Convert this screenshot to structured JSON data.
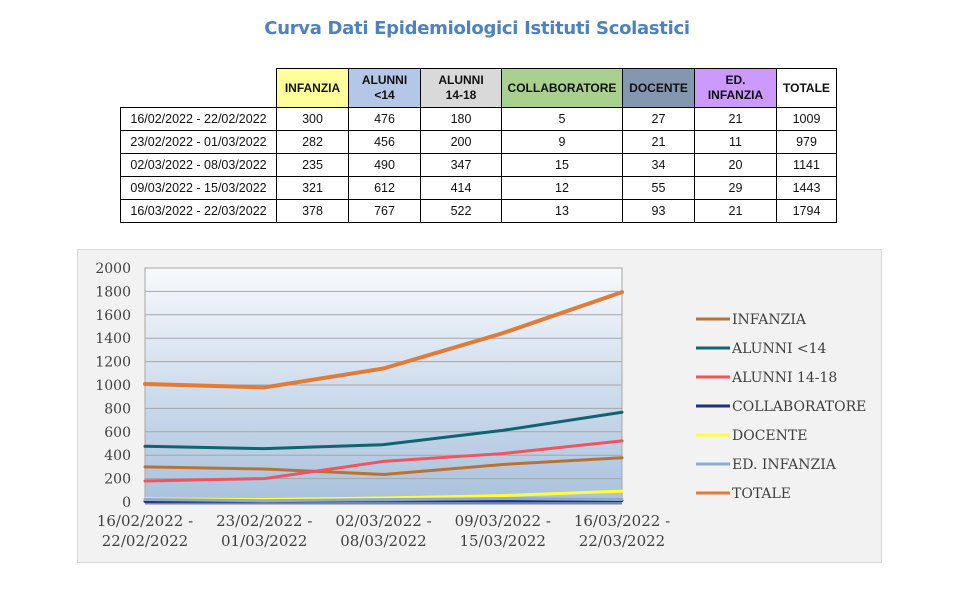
{
  "title": "Curva Dati Epidemiologici Istituti Scolastici",
  "table": {
    "columns": [
      {
        "label_line1": "INFANZIA",
        "label_line2": "",
        "bg": "#ffff99"
      },
      {
        "label_line1": "ALUNNI",
        "label_line2": "<14",
        "bg": "#b4c7e7"
      },
      {
        "label_line1": "ALUNNI",
        "label_line2": "14-18",
        "bg": "#d9d9d9"
      },
      {
        "label_line1": "COLLABORATORE",
        "label_line2": "",
        "bg": "#a9d08e"
      },
      {
        "label_line1": "DOCENTE",
        "label_line2": "",
        "bg": "#8497b0"
      },
      {
        "label_line1": "ED.",
        "label_line2": "INFANZIA",
        "bg": "#cc99ff"
      },
      {
        "label_line1": "TOTALE",
        "label_line2": "",
        "bg": "#ffffff"
      }
    ],
    "rows": [
      {
        "period": "16/02/2022 - 22/02/2022",
        "values": [
          "300",
          "476",
          "180",
          "5",
          "27",
          "21",
          "1009"
        ]
      },
      {
        "period": "23/02/2022 - 01/03/2022",
        "values": [
          "282",
          "456",
          "200",
          "9",
          "21",
          "11",
          "979"
        ]
      },
      {
        "period": "02/03/2022 - 08/03/2022",
        "values": [
          "235",
          "490",
          "347",
          "15",
          "34",
          "20",
          "1141"
        ]
      },
      {
        "period": "09/03/2022 - 15/03/2022",
        "values": [
          "321",
          "612",
          "414",
          "12",
          "55",
          "29",
          "1443"
        ]
      },
      {
        "period": "16/03/2022 - 22/03/2022",
        "values": [
          "378",
          "767",
          "522",
          "13",
          "93",
          "21",
          "1794"
        ]
      }
    ]
  },
  "chart_data": {
    "type": "line",
    "title": "",
    "xlabel": "",
    "ylabel": "",
    "ylim": [
      0,
      2000
    ],
    "yticks": [
      0,
      200,
      400,
      600,
      800,
      1000,
      1200,
      1400,
      1600,
      1800,
      2000
    ],
    "grid": true,
    "legend_position": "right",
    "categories": [
      [
        "16/02/2022 -",
        "22/02/2022"
      ],
      [
        "23/02/2022 -",
        "01/03/2022"
      ],
      [
        "02/03/2022 -",
        "08/03/2022"
      ],
      [
        "09/03/2022 -",
        "15/03/2022"
      ],
      [
        "16/03/2022 -",
        "22/03/2022"
      ]
    ],
    "series": [
      {
        "name": "INFANZIA",
        "color": "#b87333",
        "values": [
          300,
          282,
          235,
          321,
          378
        ]
      },
      {
        "name": "ALUNNI <14",
        "color": "#0e6470",
        "values": [
          476,
          456,
          490,
          612,
          767
        ]
      },
      {
        "name": "ALUNNI 14-18",
        "color": "#f0545f",
        "values": [
          180,
          200,
          347,
          414,
          522
        ]
      },
      {
        "name": "COLLABORATORE",
        "color": "#1f2e80",
        "values": [
          5,
          9,
          15,
          12,
          13
        ]
      },
      {
        "name": "DOCENTE",
        "color": "#ffff33",
        "values": [
          27,
          21,
          34,
          55,
          93
        ]
      },
      {
        "name": "ED. INFANZIA",
        "color": "#8eaad0",
        "values": [
          21,
          11,
          20,
          29,
          21
        ]
      },
      {
        "name": "TOTALE",
        "color": "#e07b3a",
        "values": [
          1009,
          979,
          1141,
          1443,
          1794
        ]
      }
    ]
  }
}
